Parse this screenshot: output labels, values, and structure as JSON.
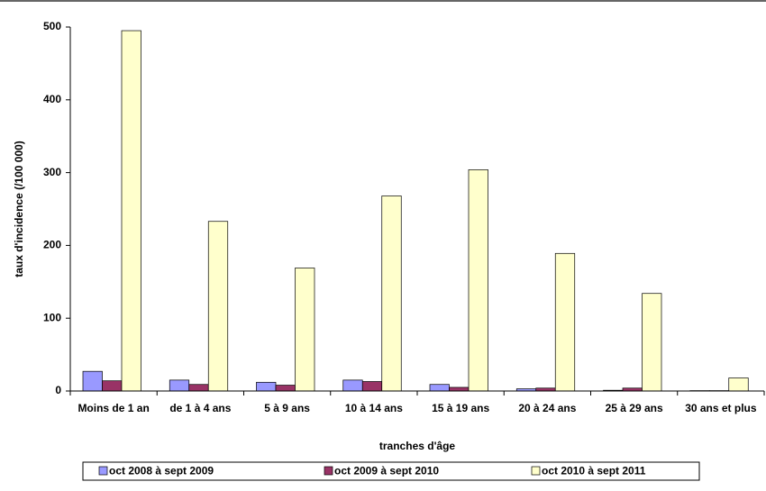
{
  "chart_data": {
    "type": "bar",
    "y_label": "taux d'incidence (/100 000)",
    "x_label": "tranches d'âge",
    "categories": [
      "Moins de 1 an",
      "de 1 à 4 ans",
      "5 à 9 ans",
      "10 à 14 ans",
      "15 à 19 ans",
      "20 à 24 ans",
      "25 à 29 ans",
      "30 ans et plus"
    ],
    "series": [
      {
        "name": "oct 2008 à sept 2009",
        "color": "#9999ff",
        "values": [
          27,
          15,
          12,
          15,
          9,
          3,
          1,
          0.5
        ]
      },
      {
        "name": "oct 2009 à sept 2010",
        "color": "#993366",
        "values": [
          14,
          9,
          8,
          13,
          5,
          4,
          4,
          0.5
        ]
      },
      {
        "name": "oct 2010 à sept 2011",
        "color": "#ffffcc",
        "values": [
          495,
          233,
          169,
          268,
          304,
          189,
          134,
          18
        ]
      }
    ],
    "ylim": [
      0,
      500
    ],
    "yticks": [
      0,
      100,
      200,
      300,
      400,
      500
    ],
    "legend": "bottom"
  }
}
